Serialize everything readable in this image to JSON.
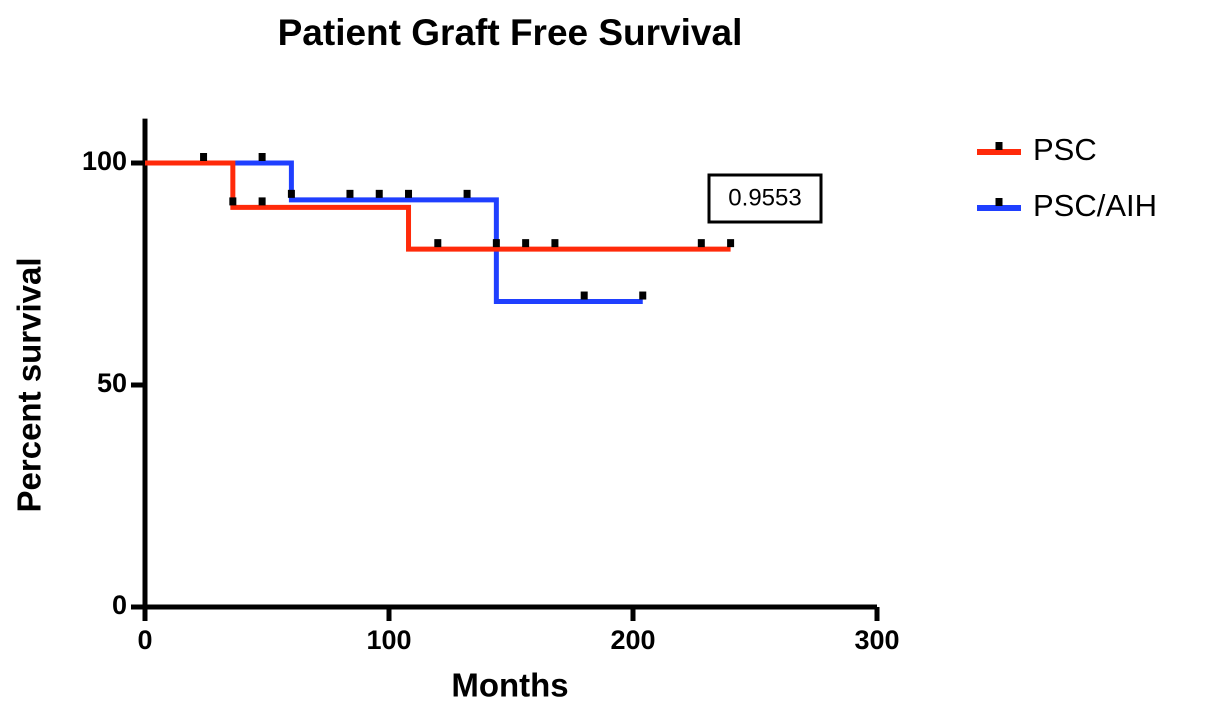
{
  "chart_data": {
    "type": "survival",
    "title": "Patient Graft Free Survival",
    "x_label": "Months",
    "y_label": "Percent survival",
    "xlim": [
      0,
      300
    ],
    "ylim": [
      0,
      110
    ],
    "xticks": [
      0,
      100,
      200,
      300
    ],
    "yticks": [
      0,
      50,
      100
    ],
    "annotation": "0.9553",
    "series": [
      {
        "name": "PSC/AIH",
        "color": "#1f3fff",
        "x": [
          0,
          60,
          60,
          144,
          144,
          204
        ],
        "values": [
          100,
          100,
          91.7,
          91.7,
          68.8,
          68.8
        ],
        "censor_x": [
          48,
          60,
          84,
          96,
          108,
          132,
          180,
          204
        ],
        "censor_values": [
          100,
          91.7,
          91.7,
          91.7,
          91.7,
          91.7,
          68.8,
          68.8
        ]
      },
      {
        "name": "PSC",
        "color": "#ff2a0a",
        "x": [
          0,
          36,
          36,
          108,
          108,
          240
        ],
        "values": [
          100,
          100,
          90,
          90,
          80.6,
          80.6
        ],
        "censor_x": [
          24,
          36,
          48,
          120,
          144,
          156,
          168,
          228,
          240
        ],
        "censor_values": [
          100,
          90,
          90,
          80.6,
          80.6,
          80.6,
          80.6,
          80.6,
          80.6
        ]
      }
    ]
  }
}
